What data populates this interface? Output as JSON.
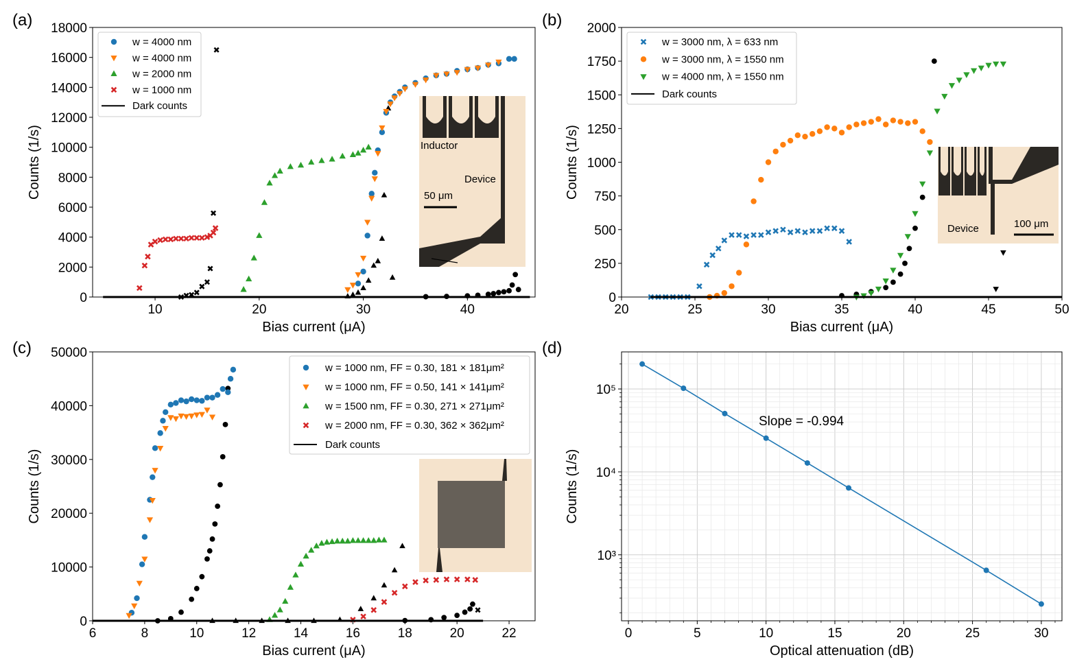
{
  "chart_data": [
    {
      "panel": "(a)",
      "type": "scatter",
      "xlabel": "Bias current (μA)",
      "ylabel": "Counts (1/s)",
      "xlim": [
        4,
        46.5
      ],
      "ylim": [
        0,
        18000
      ],
      "xticks": [
        10,
        20,
        30,
        40
      ],
      "yticks": [
        0,
        2000,
        4000,
        6000,
        8000,
        10000,
        12000,
        14000,
        16000,
        18000
      ],
      "legend": "top-left",
      "series": [
        {
          "name": "w = 4000 nm",
          "color": "#1f77b4",
          "marker": "circle",
          "x": [
            29.5,
            30.0,
            30.4,
            30.8,
            31.1,
            31.4,
            31.8,
            32.2,
            32.6,
            33.0,
            33.5,
            34.0,
            35.0,
            36.0,
            37.0,
            38.0,
            39.0,
            40.0,
            41.0,
            42.0,
            43.0,
            44.0,
            44.5
          ],
          "y": [
            900,
            1700,
            4100,
            6900,
            8300,
            9800,
            11000,
            12300,
            13000,
            13400,
            13700,
            14000,
            14300,
            14600,
            14800,
            14900,
            15100,
            15200,
            15300,
            15500,
            15600,
            15900,
            15900
          ]
        },
        {
          "name": "w = 4000 nm",
          "color": "#ff7f0e",
          "marker": "triangle-down",
          "x": [
            28.5,
            29.0,
            29.5,
            30.0,
            30.4,
            30.8,
            31.1,
            31.4,
            31.8,
            32.2,
            32.6,
            33.0,
            33.5,
            34.0,
            35.0,
            36.0,
            37.0,
            38.0,
            39.0,
            40.0,
            41.0,
            42.0,
            43.0
          ],
          "y": [
            500,
            800,
            1500,
            2600,
            5000,
            6600,
            7900,
            9600,
            11300,
            12400,
            12900,
            13300,
            13600,
            13900,
            14200,
            14500,
            14800,
            14900,
            15000,
            15200,
            15300,
            15500,
            15700
          ]
        },
        {
          "name": "w = 2000 nm",
          "color": "#2ca02c",
          "marker": "triangle-up",
          "x": [
            18.5,
            19.0,
            19.5,
            20.0,
            20.5,
            21.0,
            21.5,
            22.0,
            23.0,
            24.0,
            25.0,
            26.0,
            27.0,
            28.0,
            29.0,
            29.5,
            30.0,
            30.5
          ],
          "y": [
            500,
            1200,
            2600,
            4100,
            6300,
            7600,
            8100,
            8400,
            8700,
            8800,
            9000,
            9100,
            9200,
            9400,
            9500,
            9600,
            9800,
            10000
          ]
        },
        {
          "name": "w = 1000 nm",
          "color": "#d62728",
          "marker": "x",
          "x": [
            8.5,
            9.0,
            9.3,
            9.6,
            10.0,
            10.5,
            11.0,
            11.5,
            12.0,
            12.5,
            13.0,
            13.5,
            14.0,
            14.5,
            15.0,
            15.3,
            15.6,
            15.8
          ],
          "y": [
            600,
            2100,
            2700,
            3500,
            3700,
            3800,
            3850,
            3850,
            3900,
            3900,
            3900,
            3950,
            3950,
            3950,
            4000,
            4100,
            4300,
            4600
          ]
        },
        {
          "name": "Dark counts",
          "color": "#000000",
          "marker": "line",
          "x": [
            5.0,
            46.0
          ],
          "y": [
            0,
            0
          ]
        }
      ],
      "dark_count_markers": [
        {
          "marker": "x",
          "x": [
            12.5,
            13.0,
            13.5,
            14.0,
            14.5,
            15.0,
            15.3,
            15.6,
            15.9
          ],
          "y": [
            0,
            100,
            150,
            300,
            700,
            1000,
            1900,
            5600,
            16500
          ]
        },
        {
          "marker": "triangle-up",
          "x": [
            28.5,
            29.0,
            29.5,
            30.0,
            30.5,
            31.0,
            31.4,
            31.8,
            32.0,
            32.4,
            32.8
          ],
          "y": [
            50,
            150,
            300,
            600,
            1100,
            2100,
            2400,
            3900,
            6800,
            12600,
            1300
          ]
        },
        {
          "marker": "circle",
          "x": [
            36.0,
            38.0,
            40.0,
            41.0,
            42.0,
            42.5,
            43.0,
            43.5,
            44.0,
            44.3,
            44.6,
            44.9
          ],
          "y": [
            20,
            40,
            80,
            120,
            180,
            230,
            300,
            350,
            420,
            800,
            1500,
            500
          ]
        }
      ],
      "inset": {
        "labels": [
          "Inductor",
          "Device",
          "50 μm"
        ]
      }
    },
    {
      "panel": "(b)",
      "type": "scatter",
      "xlabel": "Bias current (μA)",
      "ylabel": "Counts (1/s)",
      "xlim": [
        20,
        50
      ],
      "ylim": [
        0,
        2000
      ],
      "xticks": [
        20,
        25,
        30,
        35,
        40,
        45,
        50
      ],
      "yticks": [
        0,
        250,
        500,
        750,
        1000,
        1250,
        1500,
        1750,
        2000
      ],
      "legend": "top-left",
      "series": [
        {
          "name": "w = 3000 nm, λ = 633 nm",
          "color": "#1f77b4",
          "marker": "x",
          "x": [
            22.0,
            22.5,
            23.0,
            23.5,
            24.0,
            24.5,
            25.3,
            25.8,
            26.2,
            26.6,
            27.0,
            27.5,
            28.0,
            28.5,
            29.0,
            29.5,
            30.0,
            30.5,
            31.0,
            31.5,
            32.0,
            32.5,
            33.0,
            33.5,
            34.0,
            34.5,
            35.0,
            35.5
          ],
          "y": [
            0,
            0,
            0,
            0,
            0,
            0,
            80,
            240,
            310,
            360,
            420,
            460,
            460,
            450,
            460,
            460,
            480,
            490,
            500,
            480,
            490,
            480,
            490,
            490,
            510,
            510,
            490,
            410
          ]
        },
        {
          "name": "w = 3000 nm, λ = 1550 nm",
          "color": "#ff7f0e",
          "marker": "circle",
          "x": [
            26.0,
            26.5,
            27.0,
            27.5,
            28.0,
            28.5,
            29.0,
            29.5,
            30.0,
            30.5,
            31.0,
            31.5,
            32.0,
            32.5,
            33.0,
            33.5,
            34.0,
            34.5,
            35.0,
            35.5,
            36.0,
            36.5,
            37.0,
            37.5,
            38.0,
            38.5,
            39.0,
            39.5,
            40.0,
            40.5,
            41.0
          ],
          "y": [
            0,
            10,
            30,
            80,
            180,
            390,
            710,
            870,
            1000,
            1080,
            1130,
            1160,
            1200,
            1190,
            1210,
            1230,
            1260,
            1250,
            1220,
            1260,
            1280,
            1290,
            1300,
            1320,
            1280,
            1310,
            1300,
            1290,
            1300,
            1230,
            1150
          ]
        },
        {
          "name": "w = 4000 nm, λ = 1550 nm",
          "color": "#2ca02c",
          "marker": "triangle-down",
          "x": [
            36.0,
            36.5,
            37.0,
            37.5,
            38.0,
            38.5,
            39.0,
            39.5,
            40.0,
            40.5,
            41.0,
            41.5,
            42.0,
            42.5,
            43.0,
            43.5,
            44.0,
            44.5,
            45.0,
            45.5,
            46.0
          ],
          "y": [
            0,
            10,
            30,
            60,
            120,
            200,
            310,
            450,
            620,
            840,
            1070,
            1380,
            1490,
            1570,
            1610,
            1650,
            1680,
            1700,
            1720,
            1730,
            1730
          ]
        },
        {
          "name": "Dark counts",
          "color": "#000000",
          "marker": "line",
          "x": [
            22.0,
            50.0
          ],
          "y": [
            0,
            0
          ]
        }
      ],
      "dark_count_markers": [
        {
          "marker": "circle",
          "x": [
            35.0,
            36.0,
            37.0,
            38.0,
            38.5,
            39.0,
            39.3,
            39.6,
            40.0,
            40.5,
            41.0,
            41.3
          ],
          "y": [
            10,
            20,
            40,
            70,
            110,
            170,
            250,
            360,
            510,
            740,
            1150,
            1750
          ]
        },
        {
          "marker": "triangle-down",
          "x": [
            45.5,
            46.0
          ],
          "y": [
            60,
            330
          ]
        }
      ],
      "inset": {
        "labels": [
          "Device",
          "100 μm"
        ]
      }
    },
    {
      "panel": "(c)",
      "type": "scatter",
      "xlabel": "Bias current (μA)",
      "ylabel": "Counts (1/s)",
      "xlim": [
        6,
        23
      ],
      "ylim": [
        0,
        50000
      ],
      "xticks": [
        6,
        8,
        10,
        12,
        14,
        16,
        18,
        20,
        22
      ],
      "yticks": [
        0,
        10000,
        20000,
        30000,
        40000,
        50000
      ],
      "legend": "top-right",
      "series": [
        {
          "name": "w = 1000 nm, FF = 0.30, 181 × 181μm²",
          "color": "#1f77b4",
          "marker": "circle",
          "x": [
            7.5,
            7.7,
            7.9,
            8.0,
            8.2,
            8.3,
            8.4,
            8.6,
            8.7,
            8.8,
            9.0,
            9.2,
            9.4,
            9.6,
            9.8,
            10.0,
            10.2,
            10.4,
            10.6,
            10.8,
            11.0,
            11.2,
            11.3,
            11.4
          ],
          "y": [
            1500,
            4200,
            10500,
            15600,
            22500,
            26700,
            32100,
            34900,
            37200,
            38800,
            40200,
            40500,
            41000,
            40800,
            41200,
            41000,
            40900,
            41500,
            41500,
            42000,
            43100,
            42500,
            45000,
            46700
          ]
        },
        {
          "name": "w = 1000 nm, FF = 0.50, 141 × 141μm²",
          "color": "#ff7f0e",
          "marker": "triangle-down",
          "x": [
            7.4,
            7.6,
            7.8,
            8.0,
            8.2,
            8.3,
            8.4,
            8.6,
            8.8,
            9.0,
            9.2,
            9.4,
            9.6,
            9.8,
            10.0,
            10.2,
            10.4,
            10.6
          ],
          "y": [
            1000,
            2800,
            7000,
            11500,
            18800,
            22400,
            28000,
            32100,
            35800,
            37800,
            37600,
            38100,
            38000,
            38100,
            38300,
            38400,
            39200,
            37900
          ]
        },
        {
          "name": "w = 1500 nm, FF = 0.30, 271 × 271μm²",
          "color": "#2ca02c",
          "marker": "triangle-up",
          "x": [
            12.8,
            13.0,
            13.2,
            13.4,
            13.6,
            13.8,
            14.0,
            14.2,
            14.4,
            14.6,
            14.8,
            15.0,
            15.2,
            15.4,
            15.6,
            15.8,
            16.0,
            16.2,
            16.4,
            16.6,
            16.8,
            17.0,
            17.2
          ],
          "y": [
            200,
            1000,
            2000,
            3600,
            6200,
            8500,
            10500,
            12000,
            13100,
            13900,
            14400,
            14600,
            14700,
            14800,
            14800,
            14800,
            14900,
            14900,
            14900,
            14900,
            14900,
            15000,
            15000
          ]
        },
        {
          "name": "w = 2000 nm, FF = 0.30, 362 × 362μm²",
          "color": "#d62728",
          "marker": "x",
          "x": [
            16.0,
            16.4,
            16.8,
            17.2,
            17.6,
            18.0,
            18.4,
            18.8,
            19.2,
            19.6,
            20.0,
            20.4,
            20.7
          ],
          "y": [
            200,
            800,
            2000,
            3500,
            5200,
            6400,
            7200,
            7500,
            7600,
            7700,
            7700,
            7700,
            7600
          ]
        },
        {
          "name": "Dark counts",
          "color": "#000000",
          "marker": "line",
          "x": [
            6.0,
            21.0
          ],
          "y": [
            0,
            0
          ]
        }
      ],
      "dark_count_markers": [
        {
          "marker": "circle",
          "x": [
            8.5,
            9.0,
            9.4,
            9.8,
            10.0,
            10.2,
            10.4,
            10.5,
            10.6,
            10.7,
            10.8,
            10.9,
            11.0,
            11.1,
            11.2
          ],
          "y": [
            0,
            400,
            1600,
            4000,
            6000,
            8200,
            11500,
            13000,
            15200,
            18000,
            21300,
            25300,
            30500,
            36500,
            43200
          ]
        },
        {
          "marker": "triangle-up",
          "x": [
            10.6,
            11.5,
            12.5,
            13.5,
            14.5,
            15.5,
            16.3,
            16.8,
            17.2,
            17.6,
            17.9
          ],
          "y": [
            0,
            0,
            0,
            0,
            0,
            200,
            2200,
            4200,
            6600,
            9400,
            13900
          ]
        },
        {
          "marker": "circle",
          "x": [
            18.0,
            19.0,
            19.5,
            20.0,
            20.3,
            20.5,
            20.6
          ],
          "y": [
            50,
            200,
            600,
            1000,
            1600,
            2200,
            3100
          ]
        },
        {
          "marker": "x",
          "x": [
            20.8
          ],
          "y": [
            2000
          ]
        }
      ],
      "inset": {
        "labels": []
      }
    },
    {
      "panel": "(d)",
      "type": "line",
      "xlabel": "Optical attenuation (dB)",
      "ylabel": "Counts (1/s)",
      "yscale": "log",
      "xlim": [
        -0.5,
        31.5
      ],
      "ylim": [
        160,
        280000
      ],
      "xticks": [
        0,
        5,
        10,
        15,
        20,
        25,
        30
      ],
      "ytick_labels": [
        "10³",
        "10⁴",
        "10⁵"
      ],
      "grid": true,
      "annotation": "Slope = -0.994",
      "series": [
        {
          "name": "Counts",
          "color": "#1f77b4",
          "marker": "circle",
          "x": [
            1,
            4,
            7,
            10,
            13,
            16,
            26,
            30
          ],
          "y": [
            200000,
            102000,
            50500,
            25500,
            12800,
            6400,
            650,
            255
          ]
        }
      ]
    }
  ]
}
